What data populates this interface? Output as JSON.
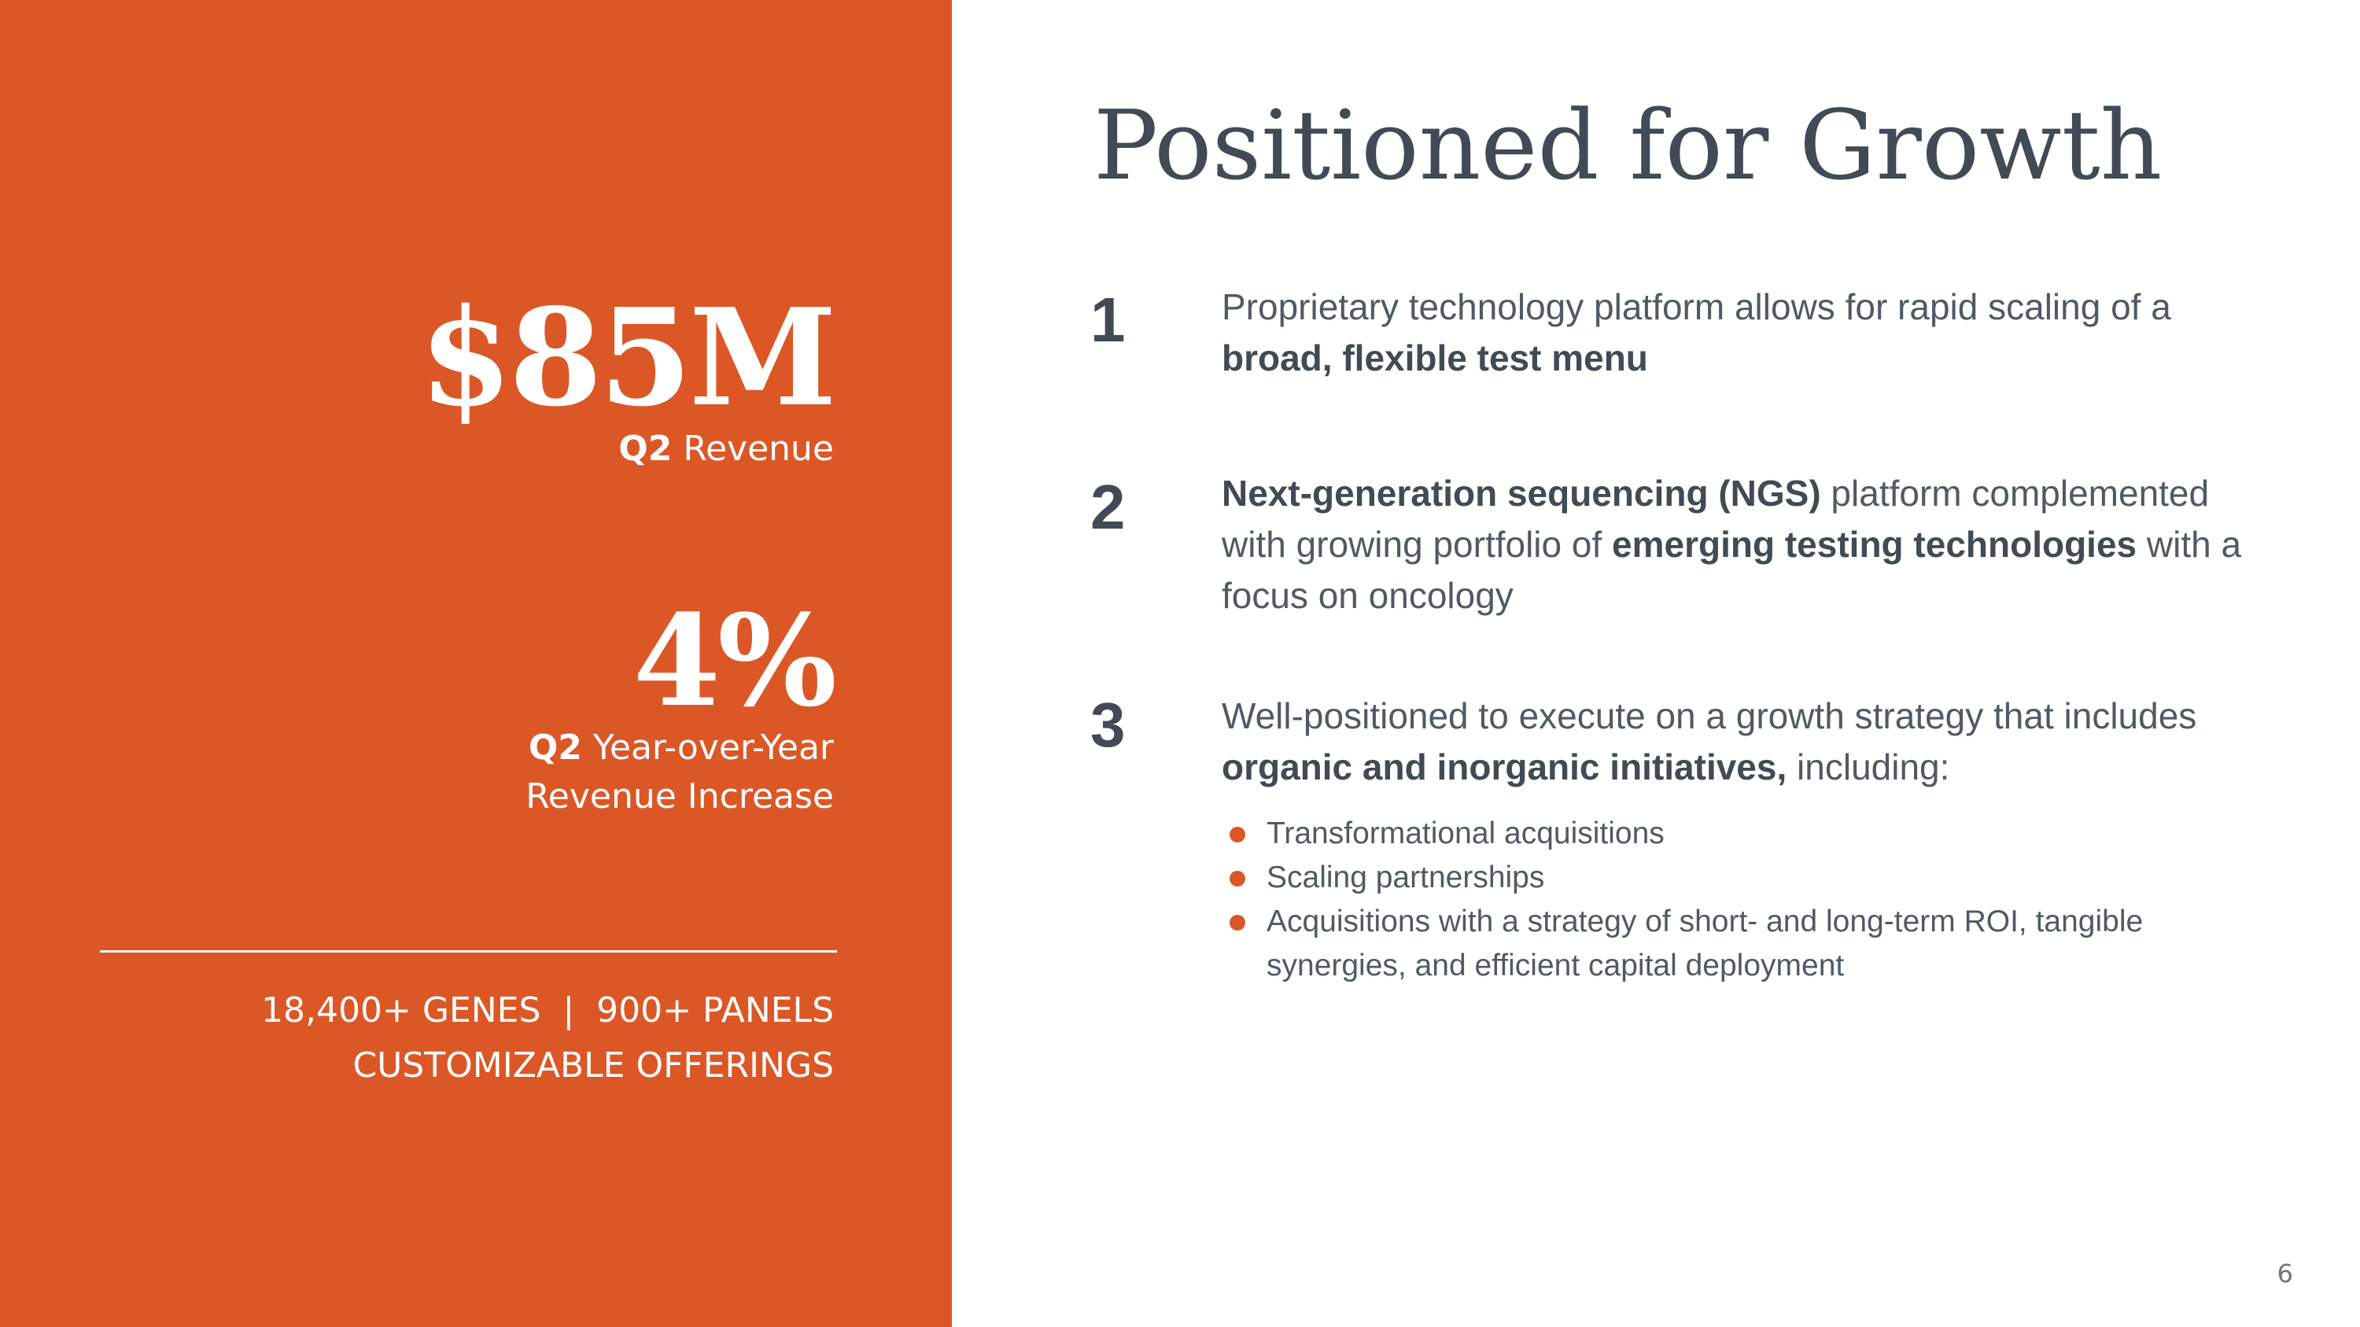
{
  "left_panel": {
    "stat1": {
      "value": "$85M",
      "label_bold": "Q2",
      "label_rest": " Revenue"
    },
    "stat2": {
      "value": "4%",
      "label_bold": "Q2",
      "label_rest": " Year-over-Year",
      "label_line2": "Revenue Increase"
    },
    "offerings": {
      "line1": "18,400+ GENES  |  900+ PANELS",
      "line2": "CUSTOMIZABLE OFFERINGS"
    },
    "accent_color": "#dc5726"
  },
  "title": "Positioned for Growth",
  "points": [
    {
      "number": "1",
      "t1": "Proprietary technology platform allows for rapid scaling of a ",
      "b1": "broad, flexible test menu"
    },
    {
      "number": "2",
      "b1": "Next-generation sequencing (NGS)",
      "t1": " platform complemented with growing portfolio of ",
      "b2": "emerging testing technologies",
      "t2": " with a focus on oncology"
    },
    {
      "number": "3",
      "t1": "Well-positioned to execute on a growth strategy that includes ",
      "b1": "organic and inorganic initiatives,",
      "t2": " including:"
    }
  ],
  "bullets": [
    "Transformational acquisitions",
    "Scaling partnerships",
    "Acquisitions with a strategy of short- and long-term ROI, tangible synergies, and efficient capital deployment"
  ],
  "page_number": "6"
}
